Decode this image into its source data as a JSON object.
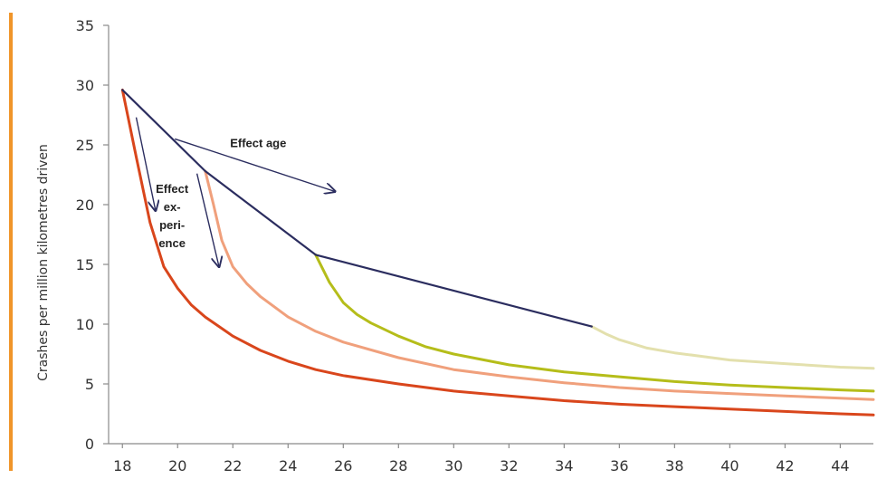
{
  "colors": {
    "accent": "#f0952a",
    "axis": "#8a8a8a",
    "age_line": "#2b2d5f",
    "arrow": "#2b2d5f"
  },
  "chart_data": {
    "type": "line",
    "title": "",
    "xlabel": "",
    "ylabel": "Crashes per million kilometres driven",
    "xlim": [
      17.5,
      45.2
    ],
    "ylim": [
      0,
      35
    ],
    "x_ticks": [
      18,
      20,
      22,
      24,
      26,
      28,
      30,
      32,
      34,
      36,
      38,
      40,
      42,
      44
    ],
    "y_ticks": [
      0,
      5,
      10,
      15,
      20,
      25,
      30,
      35
    ],
    "series": [
      {
        "color": "#d9461c",
        "points": [
          [
            18,
            29.6
          ],
          [
            18.5,
            24
          ],
          [
            19,
            18.5
          ],
          [
            19.5,
            14.8
          ],
          [
            20,
            13
          ],
          [
            20.5,
            11.6
          ],
          [
            21,
            10.6
          ],
          [
            22,
            9.0
          ],
          [
            23,
            7.8
          ],
          [
            24,
            6.9
          ],
          [
            25,
            6.2
          ],
          [
            26,
            5.7
          ],
          [
            28,
            5.0
          ],
          [
            30,
            4.4
          ],
          [
            32,
            4.0
          ],
          [
            34,
            3.6
          ],
          [
            36,
            3.3
          ],
          [
            38,
            3.1
          ],
          [
            40,
            2.9
          ],
          [
            42,
            2.7
          ],
          [
            44,
            2.5
          ],
          [
            45.2,
            2.4
          ]
        ]
      },
      {
        "color": "#f0a07c",
        "points": [
          [
            21,
            22.8
          ],
          [
            21.3,
            20
          ],
          [
            21.6,
            17
          ],
          [
            22,
            14.8
          ],
          [
            22.5,
            13.4
          ],
          [
            23,
            12.3
          ],
          [
            24,
            10.6
          ],
          [
            25,
            9.4
          ],
          [
            26,
            8.5
          ],
          [
            28,
            7.2
          ],
          [
            30,
            6.2
          ],
          [
            32,
            5.6
          ],
          [
            34,
            5.1
          ],
          [
            36,
            4.7
          ],
          [
            38,
            4.4
          ],
          [
            40,
            4.2
          ],
          [
            42,
            4.0
          ],
          [
            44,
            3.8
          ],
          [
            45.2,
            3.7
          ]
        ]
      },
      {
        "color": "#b5bd1a",
        "points": [
          [
            25,
            15.8
          ],
          [
            25.5,
            13.5
          ],
          [
            26,
            11.8
          ],
          [
            26.5,
            10.8
          ],
          [
            27,
            10.1
          ],
          [
            28,
            9.0
          ],
          [
            29,
            8.1
          ],
          [
            30,
            7.5
          ],
          [
            32,
            6.6
          ],
          [
            34,
            6.0
          ],
          [
            36,
            5.6
          ],
          [
            38,
            5.2
          ],
          [
            40,
            4.9
          ],
          [
            42,
            4.7
          ],
          [
            44,
            4.5
          ],
          [
            45.2,
            4.4
          ]
        ]
      },
      {
        "color": "#e3e0ad",
        "points": [
          [
            35,
            9.8
          ],
          [
            35.5,
            9.2
          ],
          [
            36,
            8.7
          ],
          [
            37,
            8.0
          ],
          [
            38,
            7.6
          ],
          [
            39,
            7.3
          ],
          [
            40,
            7.0
          ],
          [
            42,
            6.7
          ],
          [
            44,
            6.4
          ],
          [
            45.2,
            6.3
          ]
        ]
      },
      {
        "color": "#2b2d5f",
        "points": [
          [
            18,
            29.6
          ],
          [
            21,
            22.8
          ],
          [
            25,
            15.8
          ],
          [
            35,
            9.8
          ]
        ]
      }
    ],
    "annotations": {
      "effect_age": "Effect age",
      "effect_experience": [
        "Effect",
        "ex-",
        "peri-",
        "ence"
      ]
    },
    "arrows": [
      {
        "from": [
          19.9,
          25.5
        ],
        "to": [
          25.7,
          21.1
        ]
      },
      {
        "from": [
          18.5,
          27.3
        ],
        "to": [
          19.2,
          19.5
        ]
      },
      {
        "from": [
          20.7,
          22.6
        ],
        "to": [
          21.5,
          14.8
        ]
      }
    ],
    "grid": false,
    "legend": "none"
  }
}
